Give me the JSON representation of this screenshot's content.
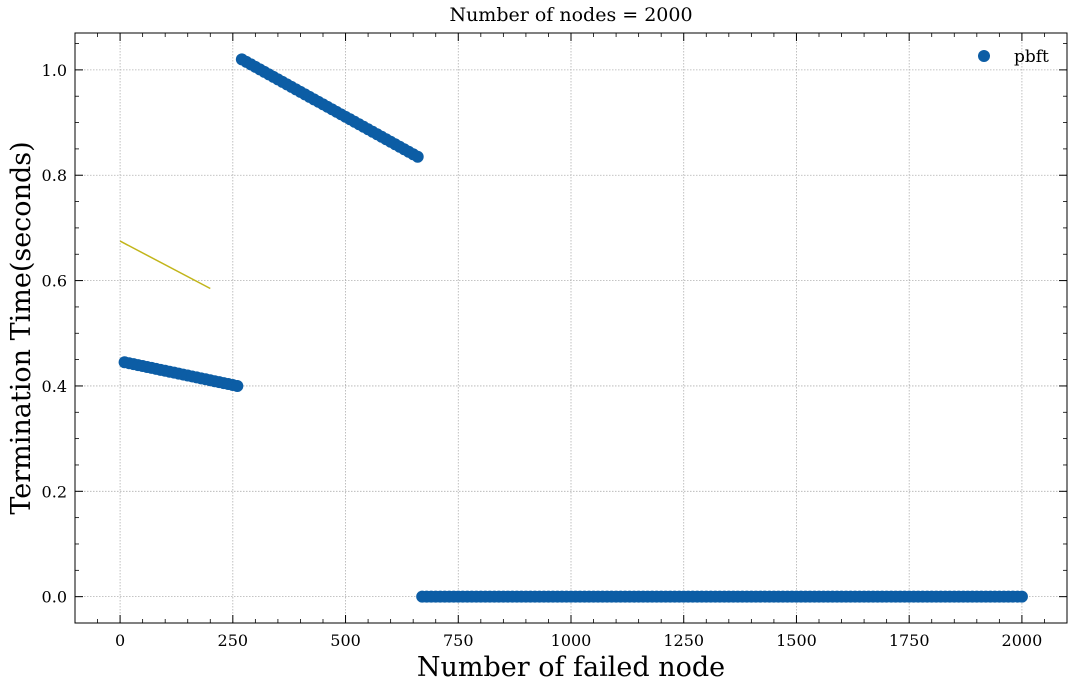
{
  "chart_data": {
    "type": "scatter",
    "title": "Number of nodes = 2000",
    "xlabel": "Number of failed node",
    "ylabel": "Termination Time(seconds)",
    "xlim": [
      -100,
      2100
    ],
    "ylim": [
      -0.05,
      1.07
    ],
    "xticks": [
      0,
      250,
      500,
      750,
      1000,
      1250,
      1500,
      1750,
      2000
    ],
    "xtick_labels": [
      "0",
      "250",
      "500",
      "750",
      "1000",
      "1250",
      "1500",
      "1750",
      "2000"
    ],
    "yticks": [
      0.0,
      0.2,
      0.4,
      0.6,
      0.8,
      1.0
    ],
    "ytick_labels": [
      "0.0",
      "0.2",
      "0.4",
      "0.6",
      "0.8",
      "1.0"
    ],
    "grid": true,
    "legend": {
      "position": "top-right",
      "entries": [
        "pbft"
      ]
    },
    "colors": {
      "pbft": "#0C5DA5",
      "line": "#C2B51A",
      "grid": "#b0b0b0"
    },
    "series": [
      {
        "name": "pbft",
        "kind": "scatter",
        "segments": [
          {
            "x_start": 10,
            "x_end": 260,
            "y_start": 0.445,
            "y_end": 0.4,
            "step": 10
          },
          {
            "x_start": 270,
            "x_end": 660,
            "y_start": 1.02,
            "y_end": 0.835,
            "step": 10
          },
          {
            "x_start": 670,
            "x_end": 2000,
            "y_start": 0.0,
            "y_end": 0.0,
            "step": 10
          }
        ]
      },
      {
        "kind": "line",
        "x": [
          0,
          200
        ],
        "y": [
          0.675,
          0.585
        ]
      }
    ]
  }
}
